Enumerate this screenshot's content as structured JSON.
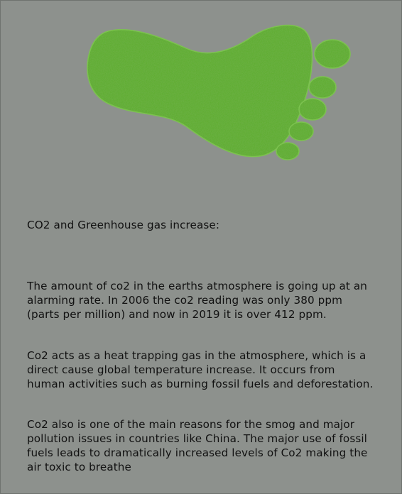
{
  "graphic": {
    "name": "green-footprint",
    "color": "#5cad2b"
  },
  "heading": "CO2 and Greenhouse gas increase:",
  "paragraphs": [
    "The amount of co2 in the earths atmosphere is going up at an alarming rate. In 2006 the co2 reading was only 380 ppm (parts per million) and now in 2019 it is over 412 ppm.",
    "Co2 acts as a heat trapping gas in the atmosphere, which is a direct cause global temperature increase. It occurs from human activities such as burning fossil fuels and deforestation.",
    "Co2 also is one of the main reasons for the smog and major pollution issues in countries like China. The major use of fossil fuels leads to dramatically increased levels of Co2 making the air toxic to breathe"
  ]
}
